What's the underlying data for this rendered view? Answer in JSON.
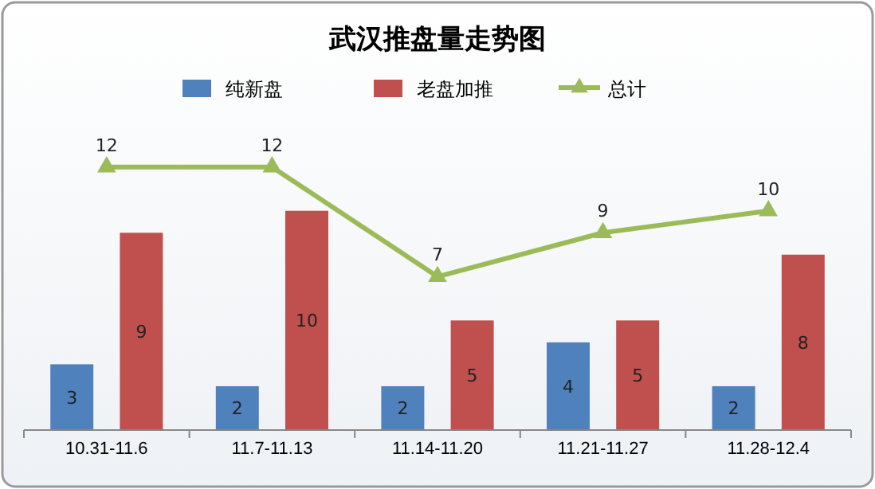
{
  "chart_data": {
    "type": "bar",
    "title": "武汉推盘量走势图",
    "categories": [
      "10.31-11.6",
      "11.7-11.13",
      "11.14-11.20",
      "11.21-11.27",
      "11.28-12.4"
    ],
    "series": [
      {
        "name": "纯新盘",
        "color": "#4f81bd",
        "values": [
          3,
          2,
          2,
          4,
          2
        ]
      },
      {
        "name": "老盘加推",
        "color": "#c0504d",
        "values": [
          9,
          10,
          5,
          5,
          8
        ]
      },
      {
        "name": "总计",
        "type": "line",
        "color": "#9bbb59",
        "values": [
          12,
          12,
          7,
          9,
          10
        ]
      }
    ],
    "data_labels": true,
    "legend": "top",
    "marker": "triangle",
    "line_style": "solid"
  }
}
